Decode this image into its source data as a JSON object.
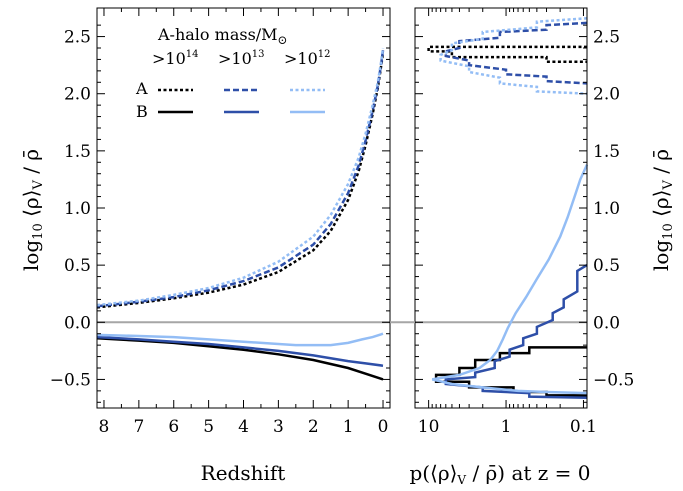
{
  "colors": {
    "black": "#000000",
    "dark_blue": "#2e4fa8",
    "light_blue": "#93bdf5",
    "zero_line": "#a6a6a6"
  },
  "legend": {
    "title": "A-halo mass/M",
    "title_symbol": "⊙",
    "columns": [
      {
        "base": ">10",
        "exp": "14"
      },
      {
        "base": ">10",
        "exp": "13"
      },
      {
        "base": ">10",
        "exp": "12"
      }
    ],
    "rows": [
      "A",
      "B"
    ]
  },
  "axes": {
    "left_ylabel": "log",
    "left_ylabel_sub": "10",
    "left_ylabel_rest": " ⟨ρ⟩",
    "left_ylabel_sub2": "V",
    "left_ylabel_end": " / ρ̄",
    "right_ylabel": "log",
    "right_ylabel_sub": "10",
    "right_ylabel_rest": " ⟨ρ⟩",
    "right_ylabel_sub2": "V",
    "right_ylabel_end": " / ρ̄",
    "left_xlabel": "Redshift",
    "right_xlabel": "p(⟨ρ⟩",
    "right_xlabel_sub": "V",
    "right_xlabel_rest": " / ρ̄) at z = 0",
    "left_xticks": [
      "8",
      "7",
      "6",
      "5",
      "4",
      "3",
      "2",
      "1",
      "0"
    ],
    "yticks": [
      "−0.5",
      "0.0",
      "0.5",
      "1.0",
      "1.5",
      "2.0",
      "2.5"
    ],
    "right_xticks": [
      "10",
      "1",
      "0.1"
    ]
  },
  "chart_data": [
    {
      "type": "line",
      "title": "",
      "xlabel": "Redshift",
      "ylabel": "log10 ⟨ρ⟩V / ρ̄",
      "xlim": [
        8.2,
        -0.2
      ],
      "ylim": [
        -0.75,
        2.75
      ],
      "zero_line": 0.0,
      "series": [
        {
          "name": "A >10^14",
          "style": "dotted",
          "color": "#000000",
          "x": [
            8.2,
            7,
            6,
            5,
            4,
            3,
            2,
            1.5,
            1,
            0.7,
            0.5,
            0.3,
            0.15,
            0.05,
            0
          ],
          "y": [
            0.13,
            0.17,
            0.21,
            0.26,
            0.33,
            0.44,
            0.63,
            0.8,
            1.07,
            1.32,
            1.55,
            1.82,
            2.05,
            2.25,
            2.36
          ]
        },
        {
          "name": "A >10^13",
          "style": "dashed",
          "color": "#2e4fa8",
          "x": [
            8.2,
            7,
            6,
            5,
            4,
            3,
            2,
            1.5,
            1,
            0.7,
            0.5,
            0.3,
            0.15,
            0.05,
            0
          ],
          "y": [
            0.14,
            0.18,
            0.22,
            0.28,
            0.36,
            0.48,
            0.68,
            0.86,
            1.13,
            1.37,
            1.59,
            1.85,
            2.07,
            2.27,
            2.38
          ]
        },
        {
          "name": "A >10^12",
          "style": "dotted",
          "color": "#93bdf5",
          "x": [
            8.2,
            7,
            6,
            5,
            4,
            3,
            2,
            1.5,
            1,
            0.7,
            0.5,
            0.3,
            0.15,
            0.05,
            0
          ],
          "y": [
            0.15,
            0.19,
            0.24,
            0.3,
            0.39,
            0.53,
            0.75,
            0.94,
            1.21,
            1.44,
            1.65,
            1.9,
            2.1,
            2.29,
            2.4
          ]
        },
        {
          "name": "B >10^14",
          "style": "solid",
          "color": "#000000",
          "x": [
            8.2,
            7,
            6,
            5,
            4,
            3,
            2,
            1,
            0.5,
            0
          ],
          "y": [
            -0.14,
            -0.16,
            -0.18,
            -0.21,
            -0.24,
            -0.28,
            -0.33,
            -0.4,
            -0.45,
            -0.5
          ]
        },
        {
          "name": "B >10^13",
          "style": "solid",
          "color": "#2e4fa8",
          "x": [
            8.2,
            7,
            6,
            5,
            4,
            3,
            2,
            1,
            0.5,
            0
          ],
          "y": [
            -0.13,
            -0.15,
            -0.17,
            -0.19,
            -0.22,
            -0.25,
            -0.29,
            -0.34,
            -0.36,
            -0.38
          ]
        },
        {
          "name": "B >10^12",
          "style": "solid",
          "color": "#93bdf5",
          "x": [
            8.2,
            7,
            6,
            5,
            4,
            3,
            2.5,
            2,
            1.5,
            1,
            0.6,
            0.3,
            0
          ],
          "y": [
            -0.11,
            -0.12,
            -0.13,
            -0.15,
            -0.17,
            -0.19,
            -0.2,
            -0.2,
            -0.2,
            -0.18,
            -0.15,
            -0.13,
            -0.1
          ]
        }
      ]
    },
    {
      "type": "line",
      "title": "",
      "xlabel": "p(⟨ρ⟩V / ρ̄) at z = 0",
      "xscale": "log",
      "xlim": [
        15,
        0.09
      ],
      "ylim": [
        -0.75,
        2.75
      ],
      "series": [
        {
          "name": "A >10^14",
          "style": "dotted",
          "color": "#000000",
          "points": [
            [
              0.09,
              2.41
            ],
            [
              10,
              2.41
            ],
            [
              10,
              2.37
            ],
            [
              5,
              2.37
            ],
            [
              5,
              2.32
            ],
            [
              0.3,
              2.32
            ],
            [
              0.3,
              2.28
            ],
            [
              0.09,
              2.28
            ]
          ]
        },
        {
          "name": "A >10^13",
          "style": "dashed",
          "color": "#2e4fa8",
          "points": [
            [
              0.09,
              2.62
            ],
            [
              0.3,
              2.6
            ],
            [
              0.3,
              2.56
            ],
            [
              1.2,
              2.54
            ],
            [
              1.2,
              2.49
            ],
            [
              4,
              2.46
            ],
            [
              4,
              2.4
            ],
            [
              6,
              2.37
            ],
            [
              6,
              2.33
            ],
            [
              3,
              2.29
            ],
            [
              3,
              2.25
            ],
            [
              1,
              2.21
            ],
            [
              1,
              2.17
            ],
            [
              0.3,
              2.15
            ],
            [
              0.3,
              2.11
            ],
            [
              0.09,
              2.09
            ]
          ]
        },
        {
          "name": "A >10^12",
          "style": "dotted",
          "color": "#93bdf5",
          "points": [
            [
              0.09,
              2.66
            ],
            [
              0.4,
              2.63
            ],
            [
              0.4,
              2.58
            ],
            [
              2,
              2.54
            ],
            [
              2,
              2.48
            ],
            [
              5,
              2.44
            ],
            [
              5,
              2.38
            ],
            [
              7,
              2.34
            ],
            [
              7,
              2.29
            ],
            [
              3,
              2.24
            ],
            [
              3,
              2.19
            ],
            [
              1.2,
              2.14
            ],
            [
              1.2,
              2.09
            ],
            [
              0.4,
              2.06
            ],
            [
              0.4,
              2.02
            ],
            [
              0.09,
              2.0
            ]
          ]
        },
        {
          "name": "B >10^14",
          "style": "solid",
          "color": "#000000",
          "points": [
            [
              0.09,
              -0.22
            ],
            [
              0.5,
              -0.22
            ],
            [
              0.5,
              -0.27
            ],
            [
              1.2,
              -0.27
            ],
            [
              1.2,
              -0.33
            ],
            [
              2.5,
              -0.33
            ],
            [
              2.5,
              -0.4
            ],
            [
              4,
              -0.4
            ],
            [
              4,
              -0.46
            ],
            [
              8,
              -0.46
            ],
            [
              8,
              -0.52
            ],
            [
              3,
              -0.52
            ],
            [
              3,
              -0.57
            ],
            [
              0.8,
              -0.57
            ],
            [
              0.8,
              -0.61
            ],
            [
              0.3,
              -0.61
            ],
            [
              0.3,
              -0.64
            ],
            [
              0.09,
              -0.64
            ]
          ]
        },
        {
          "name": "B >10^13",
          "style": "solid",
          "color": "#2e4fa8",
          "points": [
            [
              0.09,
              0.5
            ],
            [
              0.12,
              0.45
            ],
            [
              0.12,
              0.27
            ],
            [
              0.18,
              0.2
            ],
            [
              0.18,
              0.13
            ],
            [
              0.25,
              0.08
            ],
            [
              0.25,
              0.02
            ],
            [
              0.4,
              -0.04
            ],
            [
              0.4,
              -0.1
            ],
            [
              0.6,
              -0.14
            ],
            [
              0.6,
              -0.2
            ],
            [
              0.9,
              -0.24
            ],
            [
              0.9,
              -0.3
            ],
            [
              1.4,
              -0.34
            ],
            [
              1.4,
              -0.4
            ],
            [
              2.5,
              -0.44
            ],
            [
              2.5,
              -0.48
            ],
            [
              6,
              -0.5
            ],
            [
              6,
              -0.54
            ],
            [
              2,
              -0.57
            ],
            [
              2,
              -0.6
            ],
            [
              0.5,
              -0.62
            ],
            [
              0.5,
              -0.65
            ],
            [
              0.09,
              -0.66
            ]
          ]
        },
        {
          "name": "B >10^12",
          "style": "solid",
          "color": "#93bdf5",
          "points": [
            [
              0.09,
              1.38
            ],
            [
              0.11,
              1.25
            ],
            [
              0.13,
              1.1
            ],
            [
              0.16,
              0.92
            ],
            [
              0.2,
              0.75
            ],
            [
              0.28,
              0.55
            ],
            [
              0.4,
              0.38
            ],
            [
              0.55,
              0.22
            ],
            [
              0.75,
              0.08
            ],
            [
              0.95,
              -0.05
            ],
            [
              1.1,
              -0.15
            ],
            [
              1.3,
              -0.25
            ],
            [
              1.6,
              -0.33
            ],
            [
              2.2,
              -0.4
            ],
            [
              4,
              -0.46
            ],
            [
              9,
              -0.5
            ],
            [
              5,
              -0.54
            ],
            [
              2,
              -0.57
            ],
            [
              0.7,
              -0.6
            ],
            [
              0.3,
              -0.61
            ],
            [
              0.09,
              -0.62
            ]
          ]
        }
      ]
    }
  ]
}
